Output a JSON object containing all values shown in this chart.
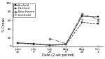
{
  "xlabel": "Date (2-wk period)",
  "ylabel": "% Crows",
  "x_labels": [
    "June\n25",
    "July\n9",
    "July\n23",
    "Aug.\n6",
    "Aug.\n20",
    "Oct.\n3"
  ],
  "x_vals": [
    0,
    1,
    2,
    3,
    4,
    5
  ],
  "series": [
    {
      "name": "Fairfield",
      "y": [
        8,
        6,
        3,
        5,
        70,
        68
      ],
      "color": "#111111",
      "linestyle": "-",
      "marker": "s",
      "markersize": 1.8,
      "linewidth": 0.6
    },
    {
      "name": "Hartford",
      "y": [
        7,
        5,
        2,
        4,
        55,
        52
      ],
      "color": "#333333",
      "linestyle": "--",
      "marker": "s",
      "markersize": 1.8,
      "linewidth": 0.6
    },
    {
      "name": "New Haven",
      "y": [
        null,
        null,
        18,
        6,
        75,
        62
      ],
      "color": "#666666",
      "linestyle": "-.",
      "marker": "D",
      "markersize": 1.8,
      "linewidth": 0.6
    },
    {
      "name": "Litchfield",
      "y": [
        null,
        null,
        null,
        null,
        62,
        58
      ],
      "color": "#999999",
      "linestyle": ":",
      "marker": "o",
      "markersize": 1.8,
      "linewidth": 0.6
    }
  ],
  "ylim": [
    0,
    100
  ],
  "yticks": [
    0,
    20,
    40,
    60,
    80,
    100
  ],
  "background_color": "#ffffff",
  "legend_fontsize": 3.0,
  "axis_fontsize": 3.5,
  "tick_fontsize": 3.0
}
